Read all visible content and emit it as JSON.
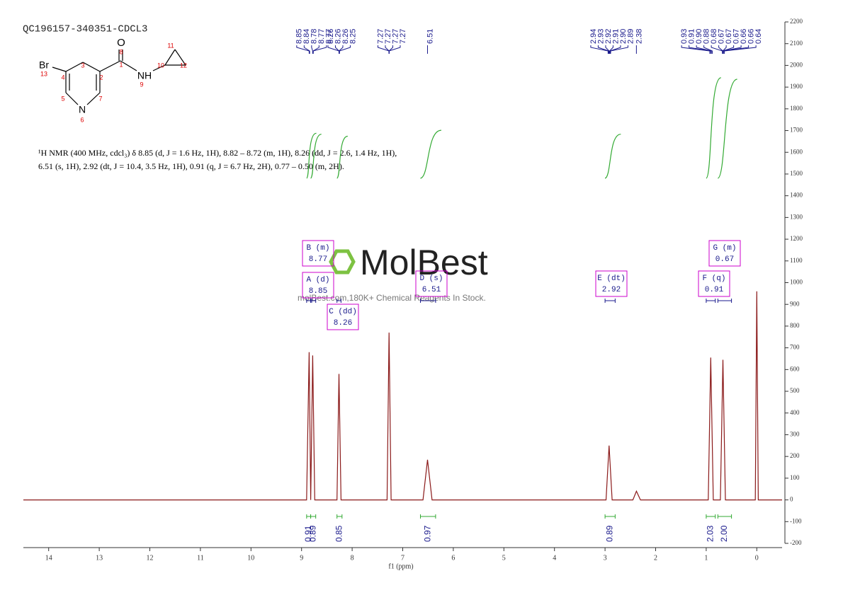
{
  "chart_data": {
    "type": "line",
    "title": "QC196157-340351-CDCL3",
    "structure_labels": [
      "O",
      "8",
      "1",
      "NH",
      "9",
      "10",
      "11",
      "12",
      "Br",
      "13",
      "4",
      "3",
      "2",
      "7",
      "5",
      "N",
      "6"
    ],
    "description": [
      "¹H NMR (400 MHz, cdcl₃) δ 8.85 (d, J = 1.6 Hz, 1H), 8.82 – 8.72 (m, 1H), 8.26 (dd, J = 2.6, 1.4 Hz, 1H),",
      "6.51 (s, 1H), 2.92 (dt, J = 10.4, 3.5 Hz, 1H), 0.91 (q, J = 6.7 Hz, 2H), 0.77 – 0.50 (m, 2H)."
    ],
    "watermark": [
      "MolBest",
      "molBest.com,180K+ Chemical Reagents In Stock."
    ],
    "peak_groups": [
      [
        8.85,
        8.84,
        8.78,
        8.77,
        8.77
      ],
      [
        8.26,
        8.26,
        8.26,
        8.25
      ],
      [
        7.27,
        7.27,
        7.27,
        7.27
      ],
      [
        6.51
      ],
      [
        2.94,
        2.93,
        2.92,
        2.91,
        {
          "value": 2.9,
          "label": "2.90"
        },
        2.89
      ],
      [
        2.38
      ],
      [
        0.93,
        0.91,
        {
          "value": 0.9,
          "label": "0.90"
        },
        0.88,
        0.68,
        0.67,
        0.67,
        0.67,
        0.66,
        0.66,
        0.64
      ]
    ],
    "multiplets": [
      {
        "label": "A (d)",
        "value": 8.85,
        "range": [
          8.9,
          8.8
        ]
      },
      {
        "label": "B (m)",
        "value": 8.77,
        "range": [
          8.82,
          8.72
        ]
      },
      {
        "label": "C (dd)",
        "value": 8.26,
        "range": [
          8.3,
          8.22
        ]
      },
      {
        "label": "D (s)",
        "value": 6.51,
        "range": [
          6.65,
          6.35
        ]
      },
      {
        "label": "E (dt)",
        "value": 2.92,
        "range": [
          3.0,
          2.8
        ]
      },
      {
        "label": "F (q)",
        "value": 0.91,
        "range": [
          1.0,
          0.82
        ]
      },
      {
        "label": "G (m)",
        "value": 0.67,
        "range": [
          0.77,
          0.5
        ]
      }
    ],
    "integrals": [
      {
        "value": 0.91,
        "range": [
          8.9,
          8.82
        ]
      },
      {
        "value": 0.89,
        "range": [
          8.82,
          8.72
        ]
      },
      {
        "value": 0.85,
        "range": [
          8.3,
          8.2
        ]
      },
      {
        "value": 0.97,
        "range": [
          6.65,
          6.35
        ]
      },
      {
        "value": 0.89,
        "range": [
          3.0,
          2.8
        ]
      },
      {
        "value": 2.03,
        "range": [
          1.0,
          0.82
        ]
      },
      {
        "value": {
          "value": 2,
          "label": "2.00"
        },
        "range": [
          0.77,
          0.5
        ]
      }
    ],
    "x": [
      14.5,
      8.9,
      8.85,
      8.82,
      8.78,
      8.74,
      8.3,
      8.26,
      8.22,
      7.31,
      7.27,
      7.23,
      6.6,
      6.51,
      6.42,
      2.98,
      2.92,
      2.86,
      2.45,
      2.38,
      2.3,
      0.96,
      0.91,
      0.86,
      0.72,
      0.67,
      0.62,
      0.03,
      0,
      -0.03,
      -0.5
    ],
    "values": [
      0,
      0,
      680,
      0,
      665,
      0,
      0,
      580,
      0,
      0,
      770,
      0,
      0,
      185,
      0,
      0,
      250,
      0,
      0,
      40,
      0,
      0,
      655,
      0,
      0,
      645,
      0,
      0,
      960,
      0,
      0
    ],
    "color": "#8b1a1a",
    "xlabel": "f1 (ppm)",
    "xlim": [
      14.5,
      -0.5
    ],
    "xticks": [
      14,
      13,
      12,
      11,
      10,
      9,
      8,
      7,
      6,
      5,
      4,
      3,
      2,
      1,
      0
    ],
    "ylim": [
      -200,
      2200
    ],
    "yticks": [
      -200,
      -100,
      0,
      100,
      200,
      300,
      400,
      500,
      600,
      700,
      800,
      900,
      1000,
      1100,
      1200,
      1300,
      1400,
      1500,
      1600,
      1700,
      1800,
      1900,
      2000,
      2100,
      2200
    ]
  }
}
